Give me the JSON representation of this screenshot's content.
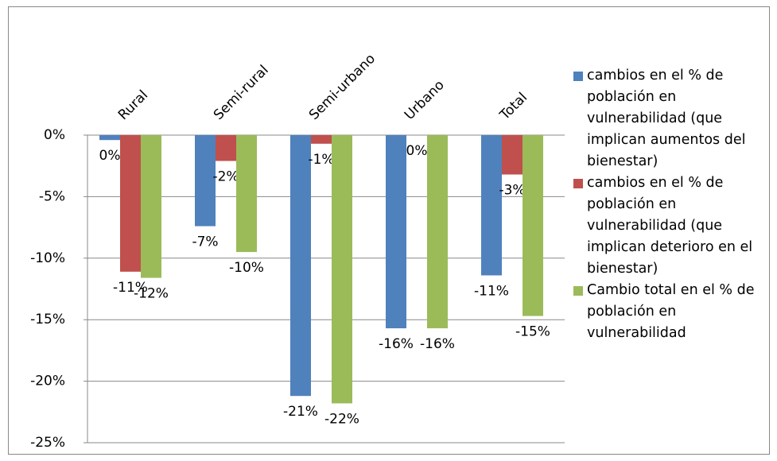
{
  "chart_data": {
    "type": "bar",
    "categories": [
      "Rural",
      "Semi-rural",
      "Semi-urbano",
      "Urbano",
      "Total"
    ],
    "series": [
      {
        "name": "cambios en el % de población en vulnerabilidad (que implican aumentos del bienestar)",
        "color": "#4f81bd",
        "values": [
          -0.4,
          -7.4,
          -21.2,
          -15.7,
          -11.4
        ],
        "value_labels": [
          "0%",
          "-7%",
          "-21%",
          "-16%",
          "-11%"
        ]
      },
      {
        "name": "cambios en el % de población en vulnerabilidad (que implican deterioro en el bienestar)",
        "color": "#c0504d",
        "values": [
          -11.1,
          -2.1,
          -0.7,
          0,
          -3.2
        ],
        "value_labels": [
          "-11%",
          "-2%",
          "-1%",
          "0%",
          "-3%"
        ]
      },
      {
        "name": "Cambio total en el % de población en vulnerabilidad",
        "color": "#9bbb59",
        "values": [
          -11.6,
          -9.5,
          -21.8,
          -15.7,
          -14.7
        ],
        "value_labels": [
          "-12%",
          "-10%",
          "-22%",
          "-16%",
          "-15%"
        ]
      }
    ],
    "ylim": [
      -25,
      0
    ],
    "yticks": [
      {
        "value": 0,
        "label": "0%"
      },
      {
        "value": -5,
        "label": "-5%"
      },
      {
        "value": -10,
        "label": "-10%"
      },
      {
        "value": -15,
        "label": "-15%"
      },
      {
        "value": -20,
        "label": "-20%"
      },
      {
        "value": -25,
        "label": "-25%"
      }
    ],
    "grid": true,
    "legend": "right"
  }
}
